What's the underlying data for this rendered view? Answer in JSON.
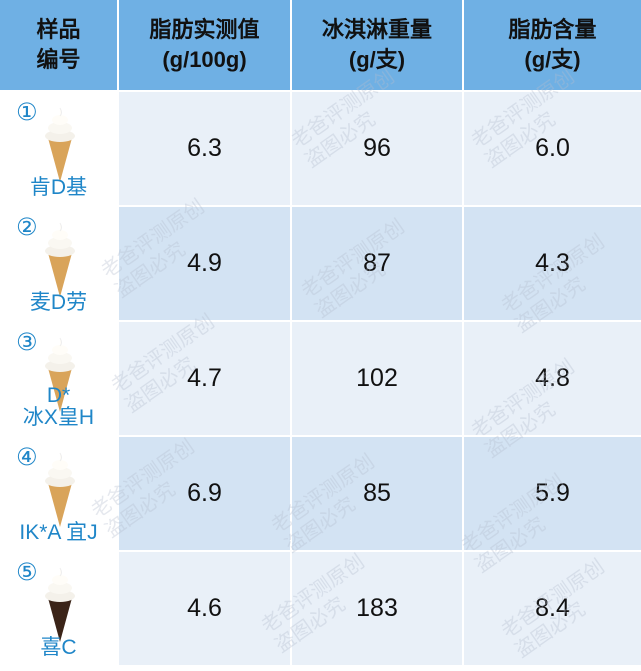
{
  "table": {
    "header": [
      [
        "样品",
        "编号"
      ],
      [
        "脂肪实测值",
        "(g/100g)"
      ],
      [
        "冰淇淋重量",
        "(g/支)"
      ],
      [
        "脂肪含量",
        "(g/支)"
      ]
    ],
    "rows": [
      {
        "number": "①",
        "name": [
          "肯D基"
        ],
        "values": [
          "6.3",
          "96",
          "6.0"
        ]
      },
      {
        "number": "②",
        "name": [
          "麦D劳"
        ],
        "values": [
          "4.9",
          "87",
          "4.3"
        ]
      },
      {
        "number": "③",
        "name": [
          "D*",
          "冰X皇H"
        ],
        "values": [
          "4.7",
          "102",
          "4.8"
        ]
      },
      {
        "number": "④",
        "name": [
          "IK*A 宜J"
        ],
        "values": [
          "6.9",
          "85",
          "5.9"
        ]
      },
      {
        "number": "⑤",
        "name": [
          "喜C"
        ],
        "values": [
          "4.6",
          "183",
          "8.4"
        ]
      }
    ]
  },
  "watermark": [
    "老爸评测原创",
    "盗图必究"
  ]
}
